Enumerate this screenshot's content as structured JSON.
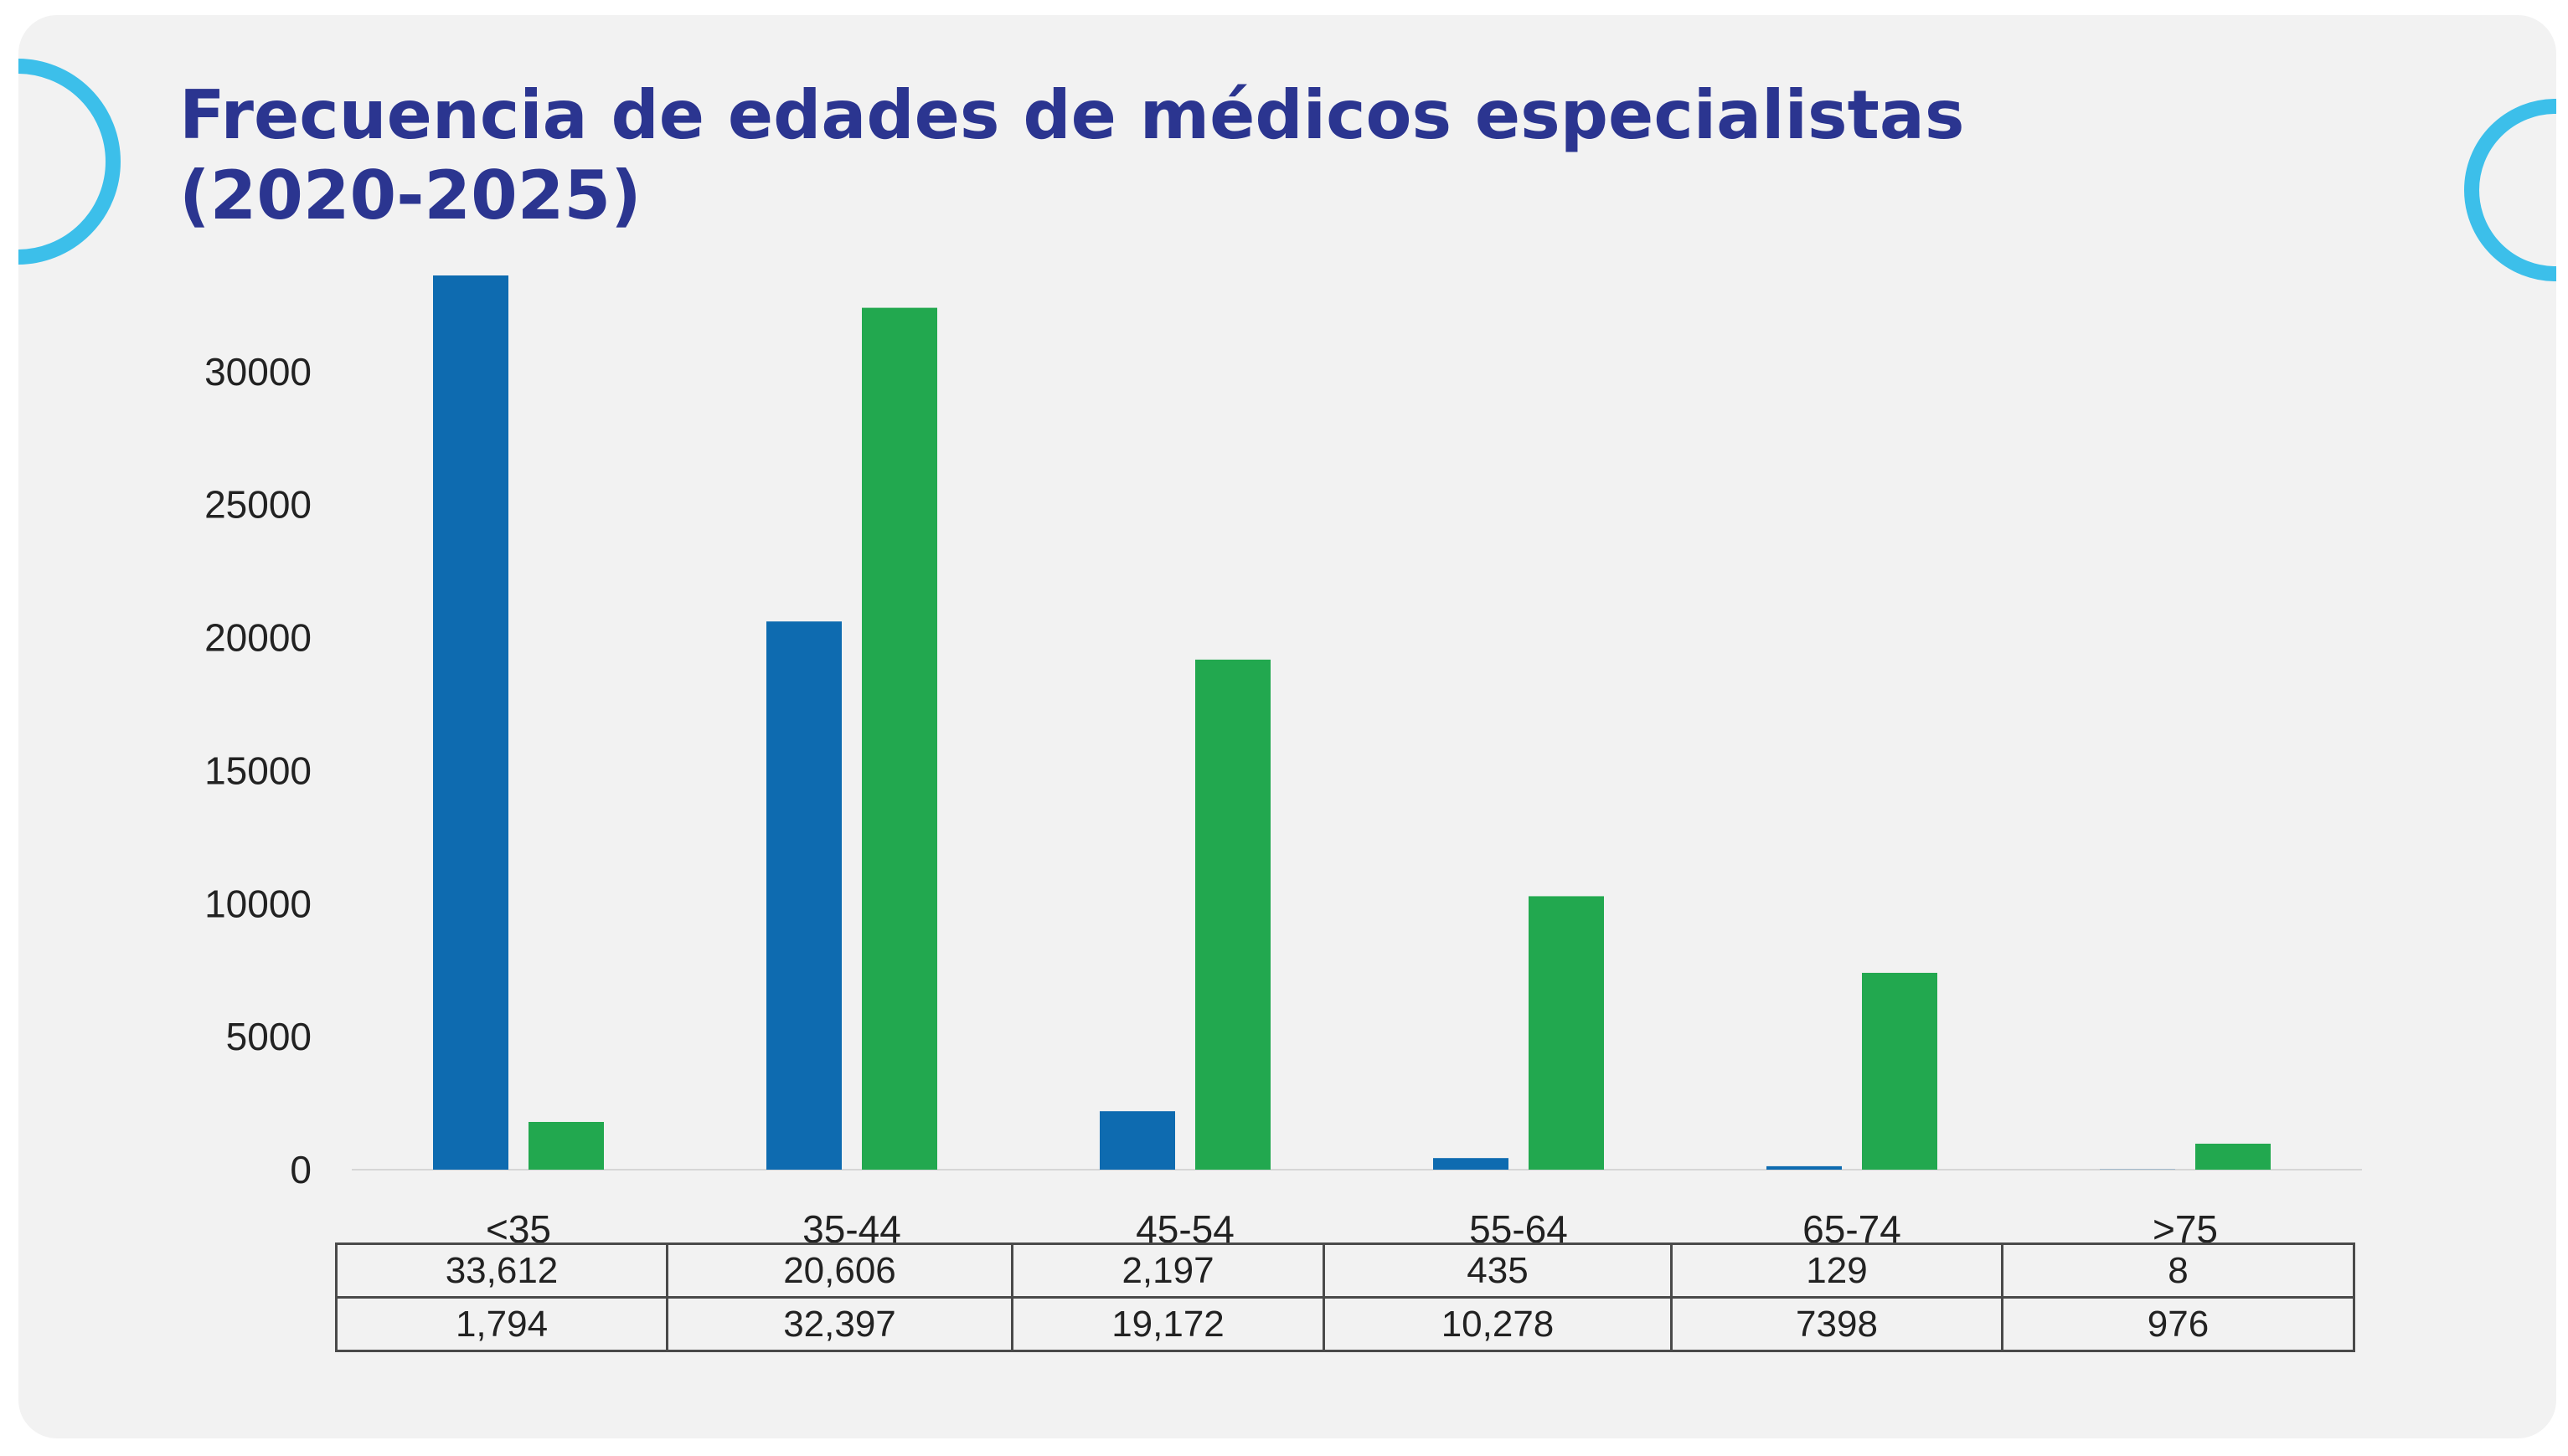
{
  "title_lines": [
    "Frecuencia de edades de médicos especialistas",
    "(2020-2025)"
  ],
  "colors": {
    "series_1": "#0e6bb0",
    "series_2": "#22a84f",
    "title": "#2b3590",
    "ring": "#3cbfea",
    "card_background": "#f2f2f2"
  },
  "decorations": [
    "ring-left",
    "ring-right"
  ],
  "chart_data": {
    "type": "bar",
    "title": "Frecuencia de edades de médicos especialistas (2020-2025)",
    "xlabel": "",
    "ylabel": "",
    "categories": [
      "<35",
      "35-44",
      "45-54",
      "55-64",
      "65-74",
      ">75"
    ],
    "series": [
      {
        "values": [
          33612,
          20606,
          2197,
          435,
          129,
          8
        ]
      },
      {
        "values": [
          1794,
          32397,
          19172,
          10278,
          7398,
          976
        ]
      }
    ],
    "ylim": [
      0,
      33612
    ],
    "yticks": [
      0,
      5000,
      10000,
      15000,
      20000,
      25000,
      30000
    ],
    "grid": false,
    "legend": "none"
  },
  "table": {
    "rows": [
      [
        "33,612",
        "20,606",
        "2,197",
        "435",
        "129",
        "8"
      ],
      [
        "1,794",
        "32,397",
        "19,172",
        "10,278",
        "7398",
        "976"
      ]
    ]
  }
}
